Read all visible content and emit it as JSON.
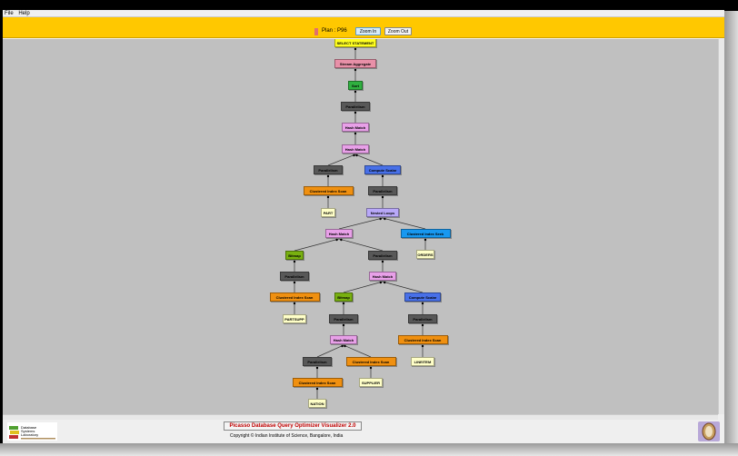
{
  "menu": [
    "File",
    "Help"
  ],
  "header": {
    "plan_label": "Plan : P96",
    "plan_color": "#e07070",
    "zoom_in": "Zoom In",
    "zoom_out": "Zoom Out"
  },
  "colors": {
    "header": "#ffc800",
    "canvas": "#c0c0c0"
  },
  "plan_tree": [
    {
      "label": "SELECT STATEMENT",
      "color": "#ffff20",
      "parent": null
    },
    {
      "label": "Stream Aggregate",
      "color": "#e890a8",
      "parent": 0
    },
    {
      "label": "Sort",
      "color": "#30b040",
      "parent": 1
    },
    {
      "label": "Parallelism",
      "color": "#585858",
      "parent": 2
    },
    {
      "label": "Hash Match",
      "color": "#e8a0e8",
      "parent": 3
    },
    {
      "label": "Hash Match",
      "color": "#e8a0e8",
      "parent": 4
    },
    {
      "label": "Parallelism",
      "color": "#585858",
      "parent": 5
    },
    {
      "label": "Compute Scalar",
      "color": "#4870e8",
      "parent": 5
    },
    {
      "label": "Clustered Index Scan",
      "color": "#f09010",
      "parent": 6
    },
    {
      "label": "PART",
      "color": "#ffffc8",
      "parent": 8
    },
    {
      "label": "Parallelism",
      "color": "#585858",
      "parent": 7
    },
    {
      "label": "Nested Loops",
      "color": "#b8a8f8",
      "parent": 10
    },
    {
      "label": "Hash Match",
      "color": "#e8a0e8",
      "parent": 11
    },
    {
      "label": "Clustered Index Seek",
      "color": "#1898f0",
      "parent": 11
    },
    {
      "label": "ORDERS",
      "color": "#ffffc8",
      "parent": 13
    },
    {
      "label": "Bitmap",
      "color": "#78b010",
      "parent": 12
    },
    {
      "label": "Parallelism",
      "color": "#585858",
      "parent": 12
    },
    {
      "label": "Parallelism",
      "color": "#585858",
      "parent": 15
    },
    {
      "label": "Hash Match",
      "color": "#e8a0e8",
      "parent": 16
    },
    {
      "label": "Clustered Index Scan",
      "color": "#f09010",
      "parent": 17
    },
    {
      "label": "PARTSUPP",
      "color": "#ffffc8",
      "parent": 19
    },
    {
      "label": "Bitmap",
      "color": "#78b010",
      "parent": 18
    },
    {
      "label": "Compute Scalar",
      "color": "#4870e8",
      "parent": 18
    },
    {
      "label": "Parallelism",
      "color": "#585858",
      "parent": 21
    },
    {
      "label": "Parallelism",
      "color": "#585858",
      "parent": 22
    },
    {
      "label": "Hash Match",
      "color": "#e8a0e8",
      "parent": 23
    },
    {
      "label": "Clustered Index Scan",
      "color": "#f09010",
      "parent": 24
    },
    {
      "label": "LINEITEM",
      "color": "#ffffc8",
      "parent": 26
    },
    {
      "label": "Parallelism",
      "color": "#585858",
      "parent": 25
    },
    {
      "label": "Clustered Index Scan",
      "color": "#f09010",
      "parent": 25
    },
    {
      "label": "Clustered Index Scan",
      "color": "#f09010",
      "parent": 28
    },
    {
      "label": "SUPPLIER",
      "color": "#ffffc8",
      "parent": 29
    },
    {
      "label": "NATION",
      "color": "#ffffc8",
      "parent": 30
    }
  ],
  "footer": {
    "logo_text": "Database Systems Laboratory",
    "title": "Picasso Database Query Optimizer Visualizer 2.0",
    "copyright": "Copyright © Indian Institute of Science, Bangalore, India"
  }
}
